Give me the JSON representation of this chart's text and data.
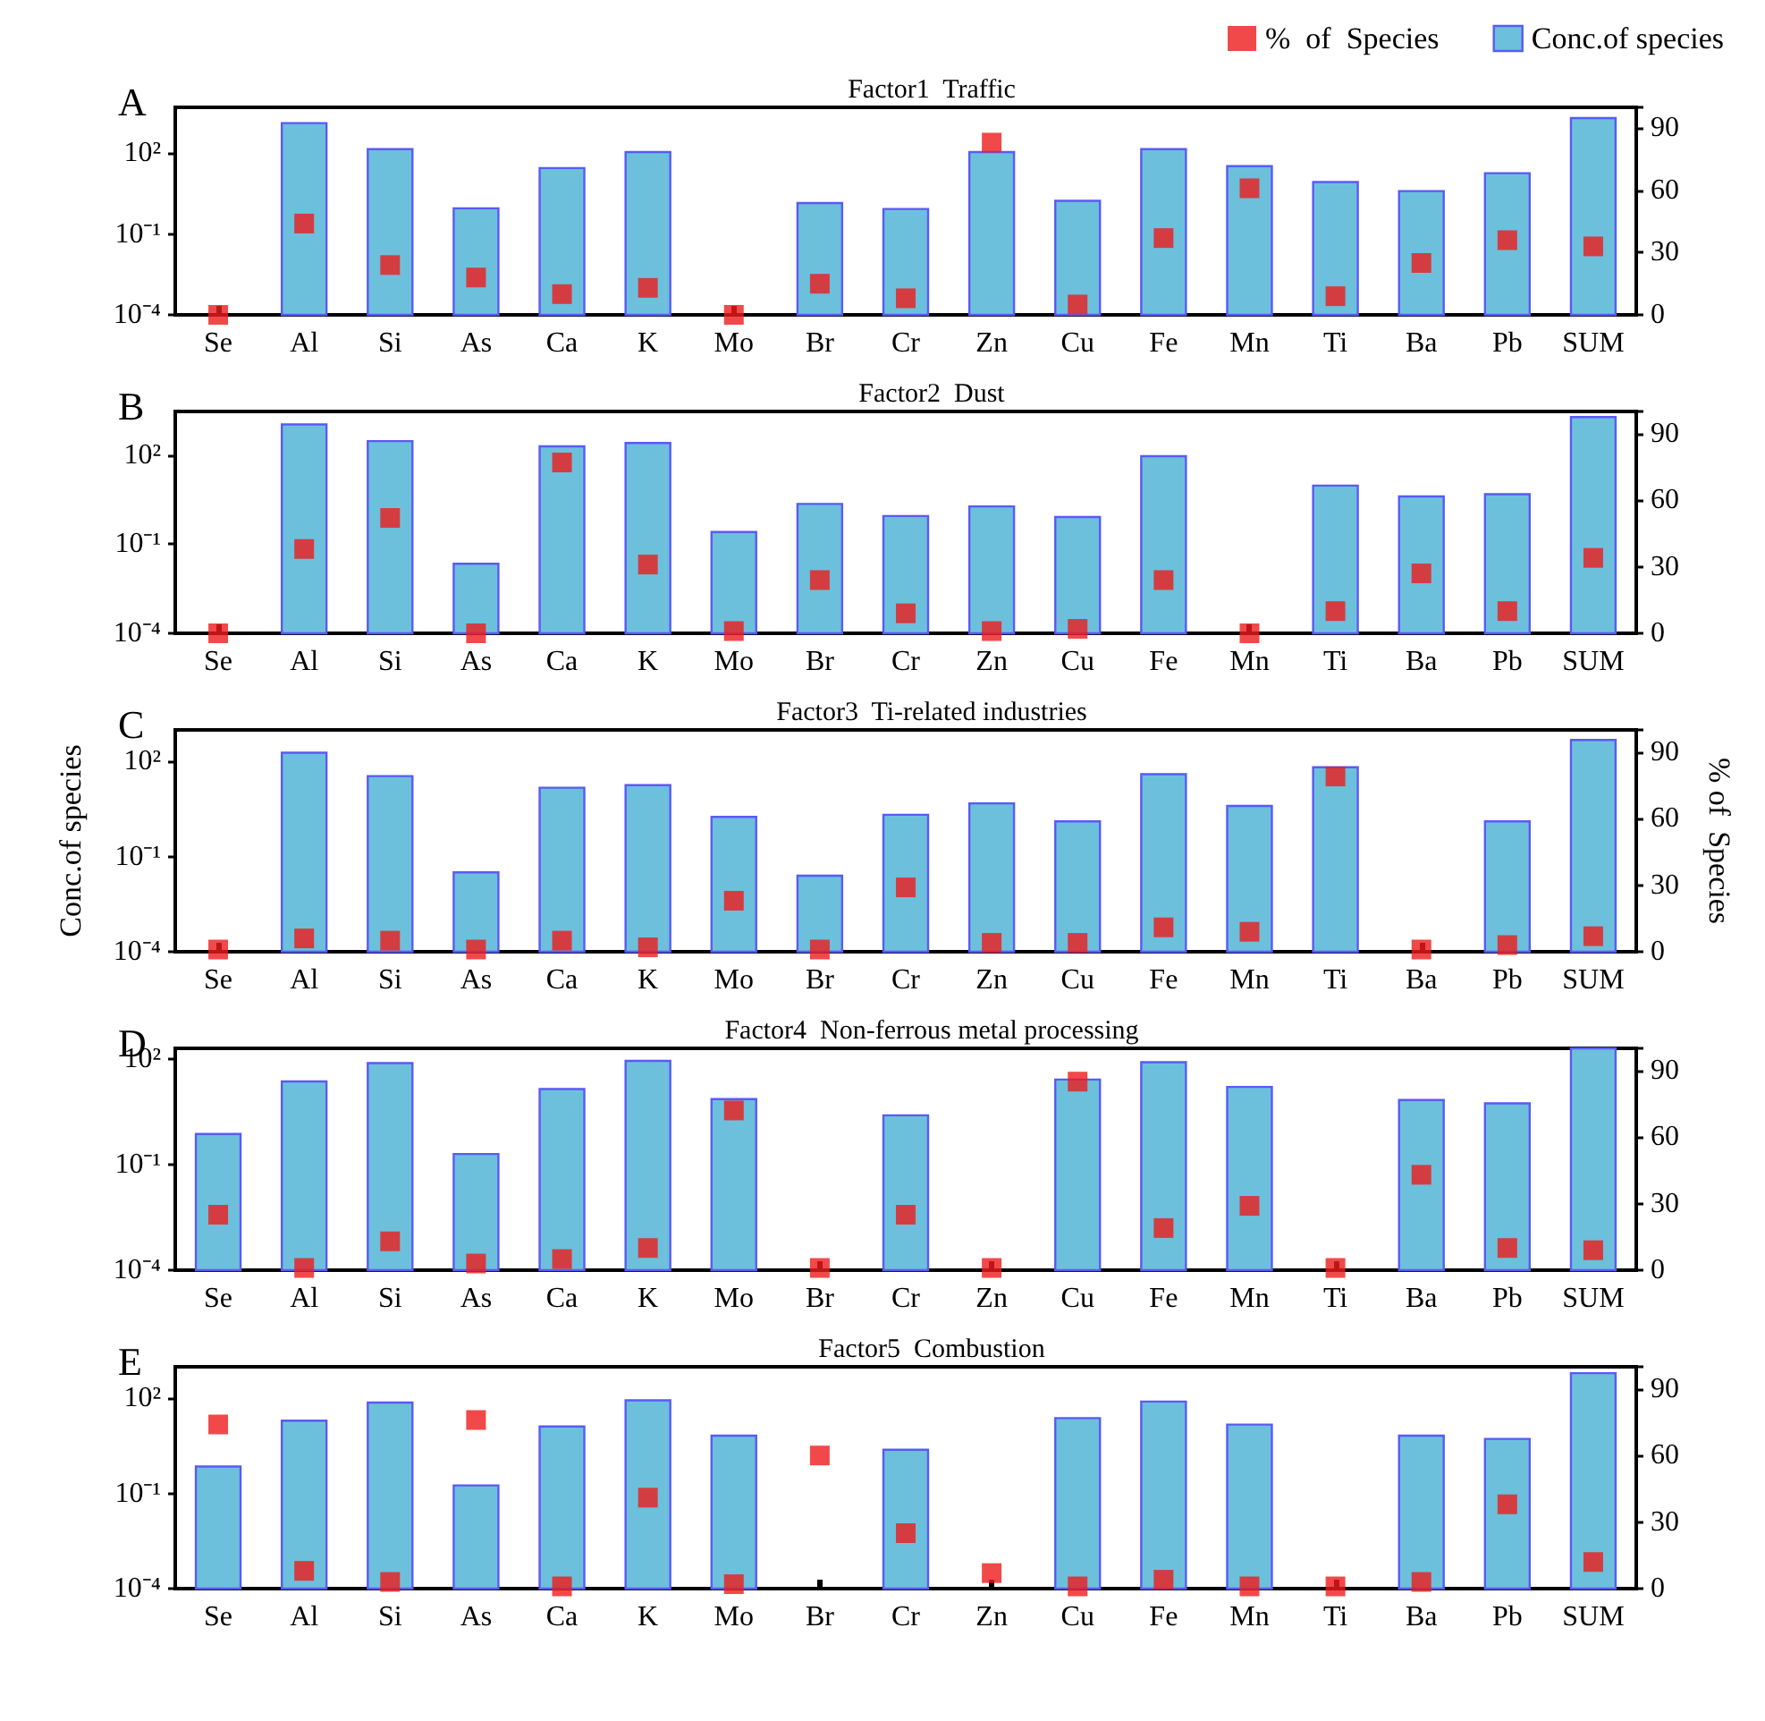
{
  "chart_data": [
    {
      "type": "bar",
      "title": "Factor1  Traffic",
      "annotations": [
        "A"
      ],
      "log": "y",
      "legend": "top right",
      "marker": "square",
      "categories": [
        "Se",
        "Al",
        "Si",
        "As",
        "Ca",
        "K",
        "Mo",
        "Br",
        "Cr",
        "Zn",
        "Cu",
        "Fe",
        "Mn",
        "Ti",
        "Ba",
        "Pb",
        "SUM"
      ],
      "ylim": [
        0.0001,
        5000
      ],
      "yticks": [
        {
          "value": 0.0001,
          "label": "10⁻⁴"
        },
        {
          "value": 0.1,
          "label": "10⁻¹"
        },
        {
          "value": 100,
          "label": "10²"
        }
      ],
      "y2lim": [
        0,
        100
      ],
      "y2ticks": [
        0,
        30,
        60,
        90
      ],
      "series": [
        {
          "name": "%  of  Species",
          "type": "scatter",
          "axis": "y2",
          "color": "#ee1c1c",
          "values": [
            0,
            44,
            24,
            18,
            10,
            13,
            0,
            15,
            8,
            83,
            5,
            37,
            61,
            9,
            25,
            36,
            33
          ]
        },
        {
          "name": "Conc.of species",
          "color": "#6cc0dc",
          "values": [
            null,
            1300,
            140,
            0.9,
            28,
            110,
            null,
            1.4,
            0.85,
            110,
            1.7,
            140,
            33,
            8.5,
            3.9,
            18,
            2000
          ]
        }
      ]
    },
    {
      "type": "bar",
      "title": "Factor2  Dust",
      "annotations": [
        "B"
      ],
      "log": "y",
      "marker": "square",
      "categories": [
        "Se",
        "Al",
        "Si",
        "As",
        "Ca",
        "K",
        "Mo",
        "Br",
        "Cr",
        "Zn",
        "Cu",
        "Fe",
        "Mn",
        "Ti",
        "Ba",
        "Pb",
        "SUM"
      ],
      "ylim": [
        0.0001,
        3000
      ],
      "yticks": [
        {
          "value": 0.0001,
          "label": "10⁻⁴"
        },
        {
          "value": 0.1,
          "label": "10⁻¹"
        },
        {
          "value": 100,
          "label": "10²"
        }
      ],
      "y2lim": [
        0,
        100
      ],
      "y2ticks": [
        0,
        30,
        60,
        90
      ],
      "series": [
        {
          "type": "scatter",
          "axis": "y2",
          "color": "#ee1c1c",
          "values": [
            0,
            38,
            52,
            0,
            77,
            31,
            1,
            24,
            9,
            1,
            2,
            24,
            0,
            10,
            27,
            10,
            34
          ]
        },
        {
          "color": "#6cc0dc",
          "values": [
            null,
            1100,
            300,
            0.022,
            200,
            260,
            0.26,
            2.3,
            0.9,
            1.9,
            0.83,
            93,
            null,
            9.5,
            4.1,
            4.9,
            1950
          ]
        }
      ]
    },
    {
      "type": "bar",
      "title": "Factor3  Ti-related industries",
      "annotations": [
        "C"
      ],
      "ylabel": "Conc.of species",
      "y2label": "% of  Species",
      "log": "y",
      "marker": "square",
      "categories": [
        "Se",
        "Al",
        "Si",
        "As",
        "Ca",
        "K",
        "Mo",
        "Br",
        "Cr",
        "Zn",
        "Cu",
        "Fe",
        "Mn",
        "Ti",
        "Ba",
        "Pb",
        "SUM"
      ],
      "ylim": [
        0.0001,
        1000
      ],
      "yticks": [
        {
          "value": 0.0001,
          "label": "10⁻⁴"
        },
        {
          "value": 0.1,
          "label": "10⁻¹"
        },
        {
          "value": 100,
          "label": "10²"
        }
      ],
      "y2lim": [
        0,
        100
      ],
      "y2ticks": [
        0,
        30,
        60,
        90
      ],
      "series": [
        {
          "type": "scatter",
          "axis": "y2",
          "color": "#ee1c1c",
          "values": [
            1,
            6,
            5,
            1,
            5,
            2,
            23,
            1,
            29,
            4,
            4,
            11,
            9,
            79,
            1,
            3,
            7
          ]
        },
        {
          "color": "#6cc0dc",
          "values": [
            null,
            190,
            35,
            0.032,
            15,
            18,
            1.8,
            0.025,
            2.1,
            4.8,
            1.3,
            40,
            4,
            66,
            null,
            1.3,
            480
          ]
        }
      ]
    },
    {
      "type": "bar",
      "title": "Factor4  Non-ferrous metal processing",
      "annotations": [
        "D"
      ],
      "log": "y",
      "marker": "square",
      "categories": [
        "Se",
        "Al",
        "Si",
        "As",
        "Ca",
        "K",
        "Mo",
        "Br",
        "Cr",
        "Zn",
        "Cu",
        "Fe",
        "Mn",
        "Ti",
        "Ba",
        "Pb",
        "SUM"
      ],
      "ylim": [
        0.0001,
        200
      ],
      "yticks": [
        {
          "value": 0.0001,
          "label": "10⁻⁴"
        },
        {
          "value": 0.1,
          "label": "10⁻¹"
        },
        {
          "value": 100,
          "label": "10²"
        }
      ],
      "y2lim": [
        0,
        100
      ],
      "y2ticks": [
        0,
        30,
        60,
        90
      ],
      "series": [
        {
          "type": "scatter",
          "axis": "y2",
          "color": "#ee1c1c",
          "values": [
            25,
            1,
            13,
            3,
            5,
            10,
            72,
            1,
            25,
            1,
            85,
            19,
            29,
            1,
            43,
            10,
            9
          ]
        },
        {
          "color": "#6cc0dc",
          "values": [
            0.74,
            23,
            76,
            0.2,
            14,
            88,
            7.2,
            null,
            2.5,
            null,
            26,
            81,
            16,
            null,
            6.8,
            5.5,
            200
          ]
        }
      ]
    },
    {
      "type": "bar",
      "title": "Factor5  Combustion",
      "annotations": [
        "E"
      ],
      "log": "y",
      "marker": "square",
      "categories": [
        "Se",
        "Al",
        "Si",
        "As",
        "Ca",
        "K",
        "Mo",
        "Br",
        "Cr",
        "Zn",
        "Cu",
        "Fe",
        "Mn",
        "Ti",
        "Ba",
        "Pb",
        "SUM"
      ],
      "ylim": [
        0.0001,
        1000
      ],
      "yticks": [
        {
          "value": 0.0001,
          "label": "10⁻⁴"
        },
        {
          "value": 0.1,
          "label": "10⁻¹"
        },
        {
          "value": 100,
          "label": "10²"
        }
      ],
      "y2lim": [
        0,
        100
      ],
      "y2ticks": [
        0,
        30,
        60,
        90
      ],
      "series": [
        {
          "type": "scatter",
          "axis": "y2",
          "color": "#ee1c1c",
          "values": [
            74,
            8,
            3,
            76,
            1,
            41,
            2,
            60,
            25,
            7,
            1,
            4,
            1,
            1,
            3,
            38,
            12
          ]
        },
        {
          "color": "#6cc0dc",
          "values": [
            0.71,
            20,
            74,
            0.18,
            13,
            87,
            6.7,
            null,
            2.4,
            null,
            24,
            80,
            15,
            null,
            6.7,
            5.3,
            630
          ]
        }
      ]
    }
  ]
}
